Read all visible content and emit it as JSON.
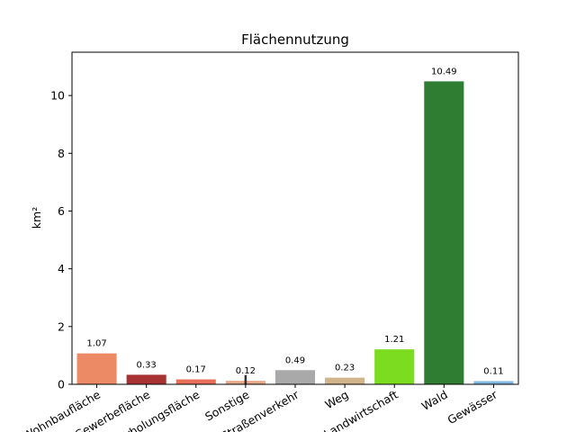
{
  "chart_data": {
    "type": "bar",
    "title": "Flächennutzung",
    "ylabel": "km²",
    "xlabel": "",
    "ylim": [
      0,
      11.5
    ],
    "yticks": [
      0,
      2,
      4,
      6,
      8,
      10
    ],
    "grid": false,
    "categories": [
      "Wohnbaufläche",
      "Gewerbefläche",
      "Erholungsfläche",
      "Sonstige",
      "Straßenverkehr",
      "Weg",
      "Landwirtschaft",
      "Wald",
      "Gewässer"
    ],
    "values": [
      1.07,
      0.33,
      0.17,
      0.12,
      0.49,
      0.23,
      1.21,
      10.49,
      0.11
    ],
    "labels": [
      "1.07",
      "0.33",
      "0.17",
      "0.12",
      "0.49",
      "0.23",
      "1.21",
      "10.49",
      "0.11"
    ],
    "colors": [
      "#eb8a65",
      "#a83232",
      "#e8705a",
      "#e8a988",
      "#a9a9a9",
      "#d2b48c",
      "#7cdc20",
      "#2e7d32",
      "#7fb8e0"
    ],
    "error_bars": [
      0,
      0,
      0,
      0.2,
      0,
      0,
      0,
      0,
      0
    ]
  }
}
